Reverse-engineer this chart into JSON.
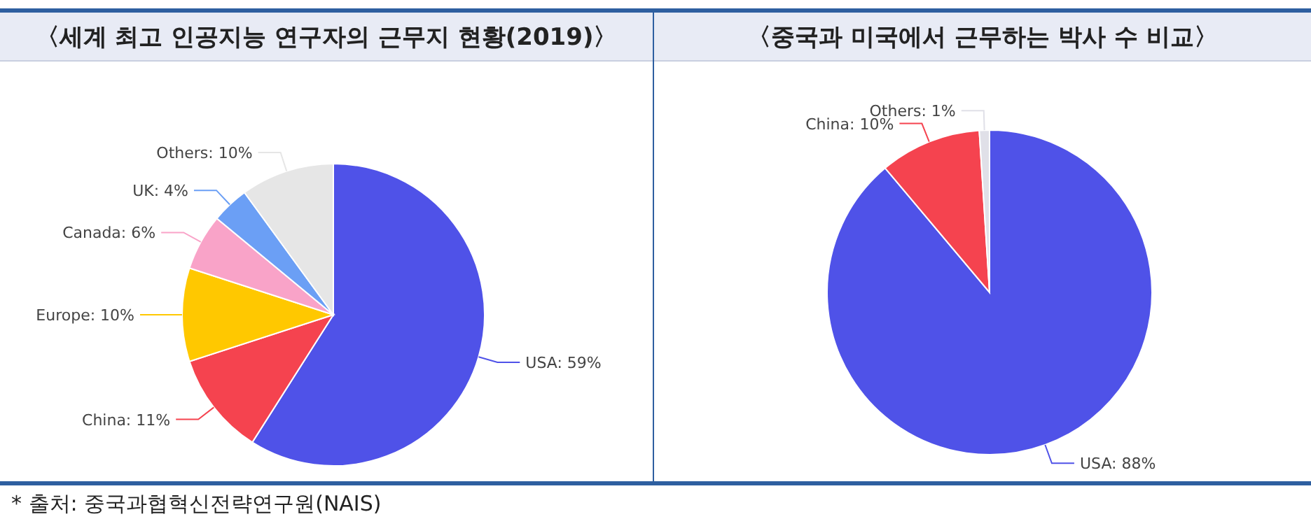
{
  "chart_data": [
    {
      "type": "pie",
      "title": "〈세계 최고 인공지능 연구자의 근무지 현황(2019)〉",
      "categories": [
        "USA",
        "China",
        "Europe",
        "Canada",
        "UK",
        "Others"
      ],
      "values": [
        59,
        11,
        10,
        6,
        4,
        10
      ],
      "colors": [
        "#4f52e8",
        "#f5434f",
        "#ffc800",
        "#f9a3c8",
        "#6b9ff5",
        "#e6e6e6"
      ],
      "value_labels": [
        "59%",
        "11%",
        "10%",
        "6%",
        "4%",
        "10%"
      ],
      "annotations": [
        "* 출처: 중국과협혁신전략연구원(NAIS)"
      ]
    },
    {
      "type": "pie",
      "title": "〈중국과 미국에서 근무하는 박사 수 비교〉",
      "categories": [
        "USA",
        "China",
        "Others"
      ],
      "values": [
        88,
        10,
        1
      ],
      "colors": [
        "#4f52e8",
        "#f5434f",
        "#e0e0e8"
      ],
      "value_labels": [
        "88%",
        "10%",
        "1%"
      ]
    }
  ]
}
